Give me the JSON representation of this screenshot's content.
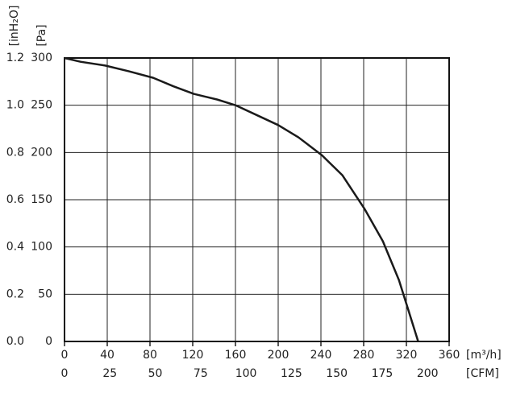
{
  "chart_data": {
    "type": "line",
    "x_label": "[m³/h]",
    "x2_label": "[CFM]",
    "y_label": "[Pa]",
    "y2_label": "[inH₂O]",
    "x": [
      0,
      15,
      38,
      60,
      83,
      102,
      121,
      143,
      160,
      181,
      200,
      219,
      241,
      260,
      281,
      298,
      313,
      323,
      331
    ],
    "series": [
      {
        "color": "#1a1a1a",
        "values": [
          300,
          296,
          292,
          286,
          279,
          270,
          262,
          256,
          250,
          239,
          229,
          216,
          197,
          176,
          140,
          106,
          65,
          29,
          0
        ]
      }
    ],
    "xlim": [
      0,
      360
    ],
    "xticks": [
      0,
      40,
      80,
      120,
      160,
      200,
      240,
      280,
      320,
      360
    ],
    "x2lim": [
      0,
      211.9
    ],
    "x2ticks": [
      0,
      25,
      50,
      75,
      100,
      125,
      150,
      175,
      200
    ],
    "ylim": [
      0,
      300
    ],
    "yticks": [
      0,
      50,
      100,
      150,
      200,
      250,
      300
    ],
    "y2lim": [
      0,
      1.2
    ],
    "y2ticks": [
      {
        "value": 0,
        "label": "0.0"
      },
      0.2,
      0.4,
      0.6,
      0.8,
      {
        "value": 1,
        "label": "1.0"
      },
      1.2
    ],
    "grid": true
  }
}
